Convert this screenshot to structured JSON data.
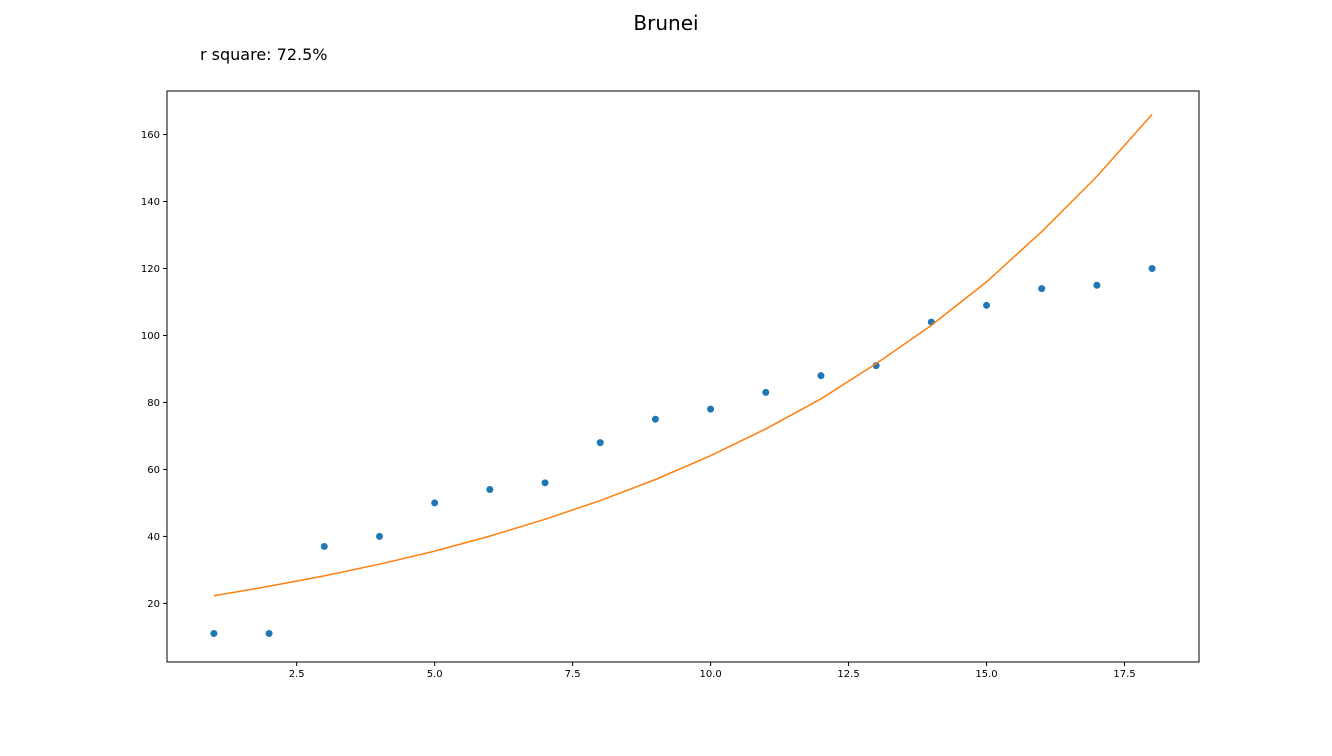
{
  "chart_data": {
    "type": "scatter",
    "title": "Brunei",
    "annotation": "r square: 72.5%",
    "xlabel": "",
    "ylabel": "",
    "xlim": [
      0.15,
      18.85
    ],
    "ylim": [
      2.5,
      173
    ],
    "x_ticks": [
      2.5,
      5.0,
      7.5,
      10.0,
      12.5,
      15.0,
      17.5
    ],
    "x_tick_labels": [
      "2.5",
      "5.0",
      "7.5",
      "10.0",
      "12.5",
      "15.0",
      "17.5"
    ],
    "y_ticks": [
      20,
      40,
      60,
      80,
      100,
      120,
      140,
      160
    ],
    "y_tick_labels": [
      "20",
      "40",
      "60",
      "80",
      "100",
      "120",
      "140",
      "160"
    ],
    "grid": false,
    "series": [
      {
        "kind": "scatter",
        "color": "#1f77b4",
        "x": [
          1,
          2,
          3,
          4,
          5,
          6,
          7,
          8,
          9,
          10,
          11,
          12,
          13,
          14,
          15,
          16,
          17,
          18
        ],
        "y": [
          11,
          11,
          37,
          40,
          50,
          54,
          56,
          68,
          75,
          78,
          83,
          88,
          91,
          104,
          109,
          114,
          115,
          120
        ]
      },
      {
        "kind": "line",
        "color": "#ff7f0e",
        "x": [
          1,
          2,
          3,
          4,
          5,
          6,
          7,
          8,
          9,
          10,
          11,
          12,
          13,
          14,
          15,
          16,
          17,
          18
        ],
        "y": [
          22.3,
          25.1,
          28.2,
          31.7,
          35.6,
          40.1,
          45.1,
          50.7,
          57.0,
          64.1,
          72.1,
          81.1,
          91.6,
          103.0,
          116.0,
          131.0,
          147.5,
          166.0
        ]
      }
    ]
  }
}
